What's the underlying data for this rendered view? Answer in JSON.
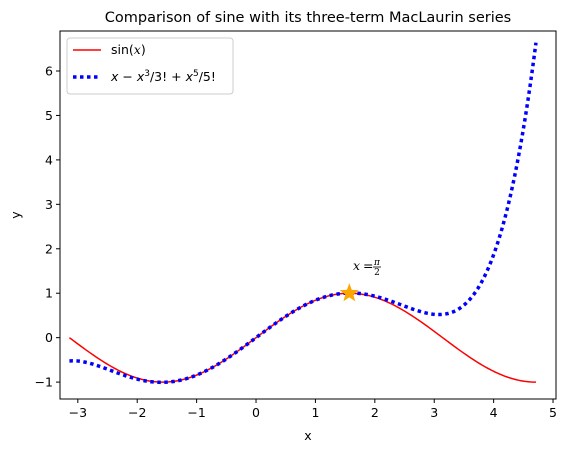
{
  "chart_data": {
    "type": "line",
    "title": "Comparison of sine with its three-term MacLaurin series",
    "xlabel": "x",
    "ylabel": "y",
    "xlim": [
      -3.3,
      5.05
    ],
    "ylim": [
      -1.38,
      6.9
    ],
    "xticks": [
      -3,
      -2,
      -1,
      0,
      1,
      2,
      3,
      4,
      5
    ],
    "xtick_labels": [
      "−3",
      "−2",
      "−1",
      "0",
      "1",
      "2",
      "3",
      "4",
      "5"
    ],
    "yticks": [
      -1,
      0,
      1,
      2,
      3,
      4,
      5,
      6
    ],
    "ytick_labels": [
      "−1",
      "0",
      "1",
      "2",
      "3",
      "4",
      "5",
      "6"
    ],
    "grid": false,
    "legend_position": "top-left",
    "x_range": [
      -3.14159,
      4.71239
    ],
    "series": [
      {
        "name": "sin(x)",
        "function": "sin",
        "color": "#ff0000",
        "style": "solid"
      },
      {
        "name": "x − x³/3! + x⁵/5!",
        "function": "maclaurin3",
        "color": "#0000ff",
        "style": "dotted"
      }
    ],
    "marker": {
      "x": 1.5708,
      "y": 1.0,
      "shape": "star",
      "color": "#ffa500"
    },
    "annotation": {
      "text": "x = π/2",
      "x": 1.5708,
      "y": 1.0
    }
  }
}
